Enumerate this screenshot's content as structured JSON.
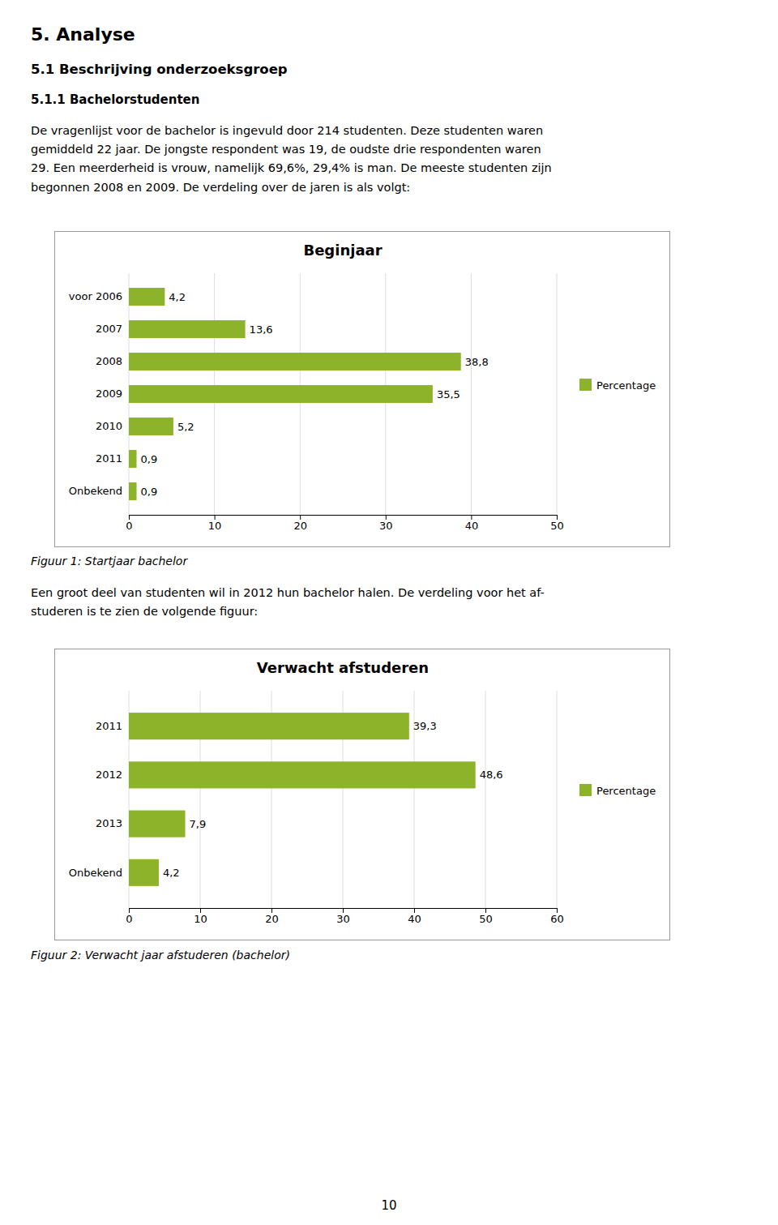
{
  "page_title_main": "5.   Analyse",
  "page_title_sub": "5.1   Beschrijving onderzoeksgroep",
  "page_title_sub2": "5.1.1 Bachelorstudenten",
  "body_text1": "De vragenlijst voor de bachelor is ingevuld door 214 studenten. Deze studenten waren\ngemiddeld 22 jaar. De jongste respondent was 19, de oudste drie respondenten waren\n29. Een meerderheid is vrouw, namelijk 69,6%, 29,4% is man. De meeste studenten zijn\nbegonnen 2008 en 2009. De verdeling over de jaren is als volgt:",
  "body_text2": "Een groot deel van studenten wil in 2012 hun bachelor halen. De verdeling voor het af-\nstuderen is te zien de volgende figuur:",
  "page_number": "10",
  "chart_data": [
    {
      "type": "bar",
      "title": "Beginjaar",
      "orientation": "horizontal",
      "categories": [
        "voor 2006",
        "2007",
        "2008",
        "2009",
        "2010",
        "2011",
        "Onbekend"
      ],
      "series": [
        {
          "name": "Percentage",
          "color": "#8DB32A",
          "values": [
            4.2,
            13.6,
            38.8,
            35.5,
            5.2,
            0.9,
            0.9
          ],
          "value_labels": [
            "4,2",
            "13,6",
            "38,8",
            "35,5",
            "5,2",
            "0,9",
            "0,9"
          ]
        }
      ],
      "xlim": [
        0,
        50
      ],
      "xticks": [
        0,
        10,
        20,
        30,
        40,
        50
      ],
      "grid": true,
      "legend": "right",
      "data_labels": true,
      "caption": "Figuur 1: Startjaar bachelor"
    },
    {
      "type": "bar",
      "title": "Verwacht afstuderen",
      "orientation": "horizontal",
      "categories": [
        "2011",
        "2012",
        "2013",
        "Onbekend"
      ],
      "series": [
        {
          "name": "Percentage",
          "color": "#8DB32A",
          "values": [
            39.3,
            48.6,
            7.9,
            4.2
          ],
          "value_labels": [
            "39,3",
            "48,6",
            "7,9",
            "4,2"
          ]
        }
      ],
      "xlim": [
        0,
        60
      ],
      "xticks": [
        0,
        10,
        20,
        30,
        40,
        50,
        60
      ],
      "grid": true,
      "legend": "right",
      "data_labels": true,
      "caption": "Figuur 2: Verwacht jaar afstuderen (bachelor)"
    }
  ]
}
